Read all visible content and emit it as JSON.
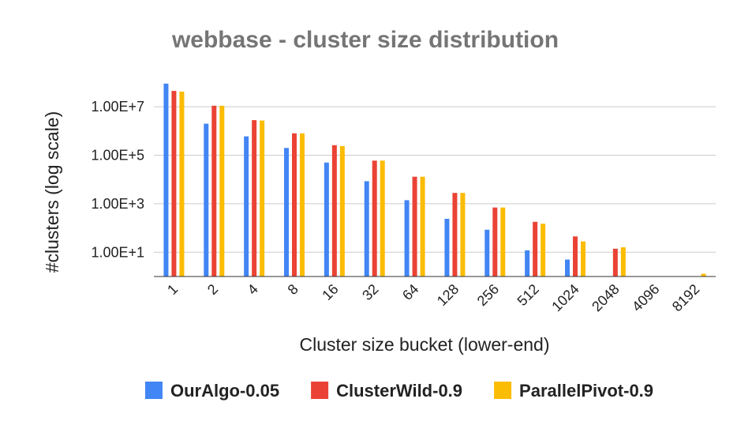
{
  "chart_data": {
    "type": "bar",
    "title": "webbase - cluster size distribution",
    "xlabel": "Cluster size bucket (lower-end)",
    "ylabel": "#clusters (log scale)",
    "y_scale": "log10",
    "ylim": [
      1,
      150000000
    ],
    "y_ticks": [
      10,
      1000,
      100000,
      10000000
    ],
    "y_tick_labels": [
      "1.00E+1",
      "1.00E+3",
      "1.00E+5",
      "1.00E+7"
    ],
    "grid": true,
    "legend_position": "bottom",
    "categories": [
      "1",
      "2",
      "4",
      "8",
      "16",
      "32",
      "64",
      "128",
      "256",
      "512",
      "1024",
      "2048",
      "4096",
      "8192"
    ],
    "series": [
      {
        "name": "OurAlgo-0.05",
        "color": "#4285F4",
        "values": [
          90000000,
          2000000,
          600000,
          200000,
          50000,
          8500,
          1400,
          240,
          85,
          12,
          5,
          null,
          null,
          null
        ]
      },
      {
        "name": "ClusterWild-0.9",
        "color": "#EA4335",
        "values": [
          45000000,
          11000000,
          2800000,
          800000,
          260000,
          60000,
          13000,
          2800,
          700,
          180,
          45,
          14,
          null,
          null
        ]
      },
      {
        "name": "ParallelPivot-0.9",
        "color": "#FBBC04",
        "values": [
          42000000,
          11000000,
          2700000,
          800000,
          240000,
          60000,
          13000,
          2800,
          700,
          150,
          28,
          16,
          null,
          1.3
        ]
      }
    ]
  }
}
